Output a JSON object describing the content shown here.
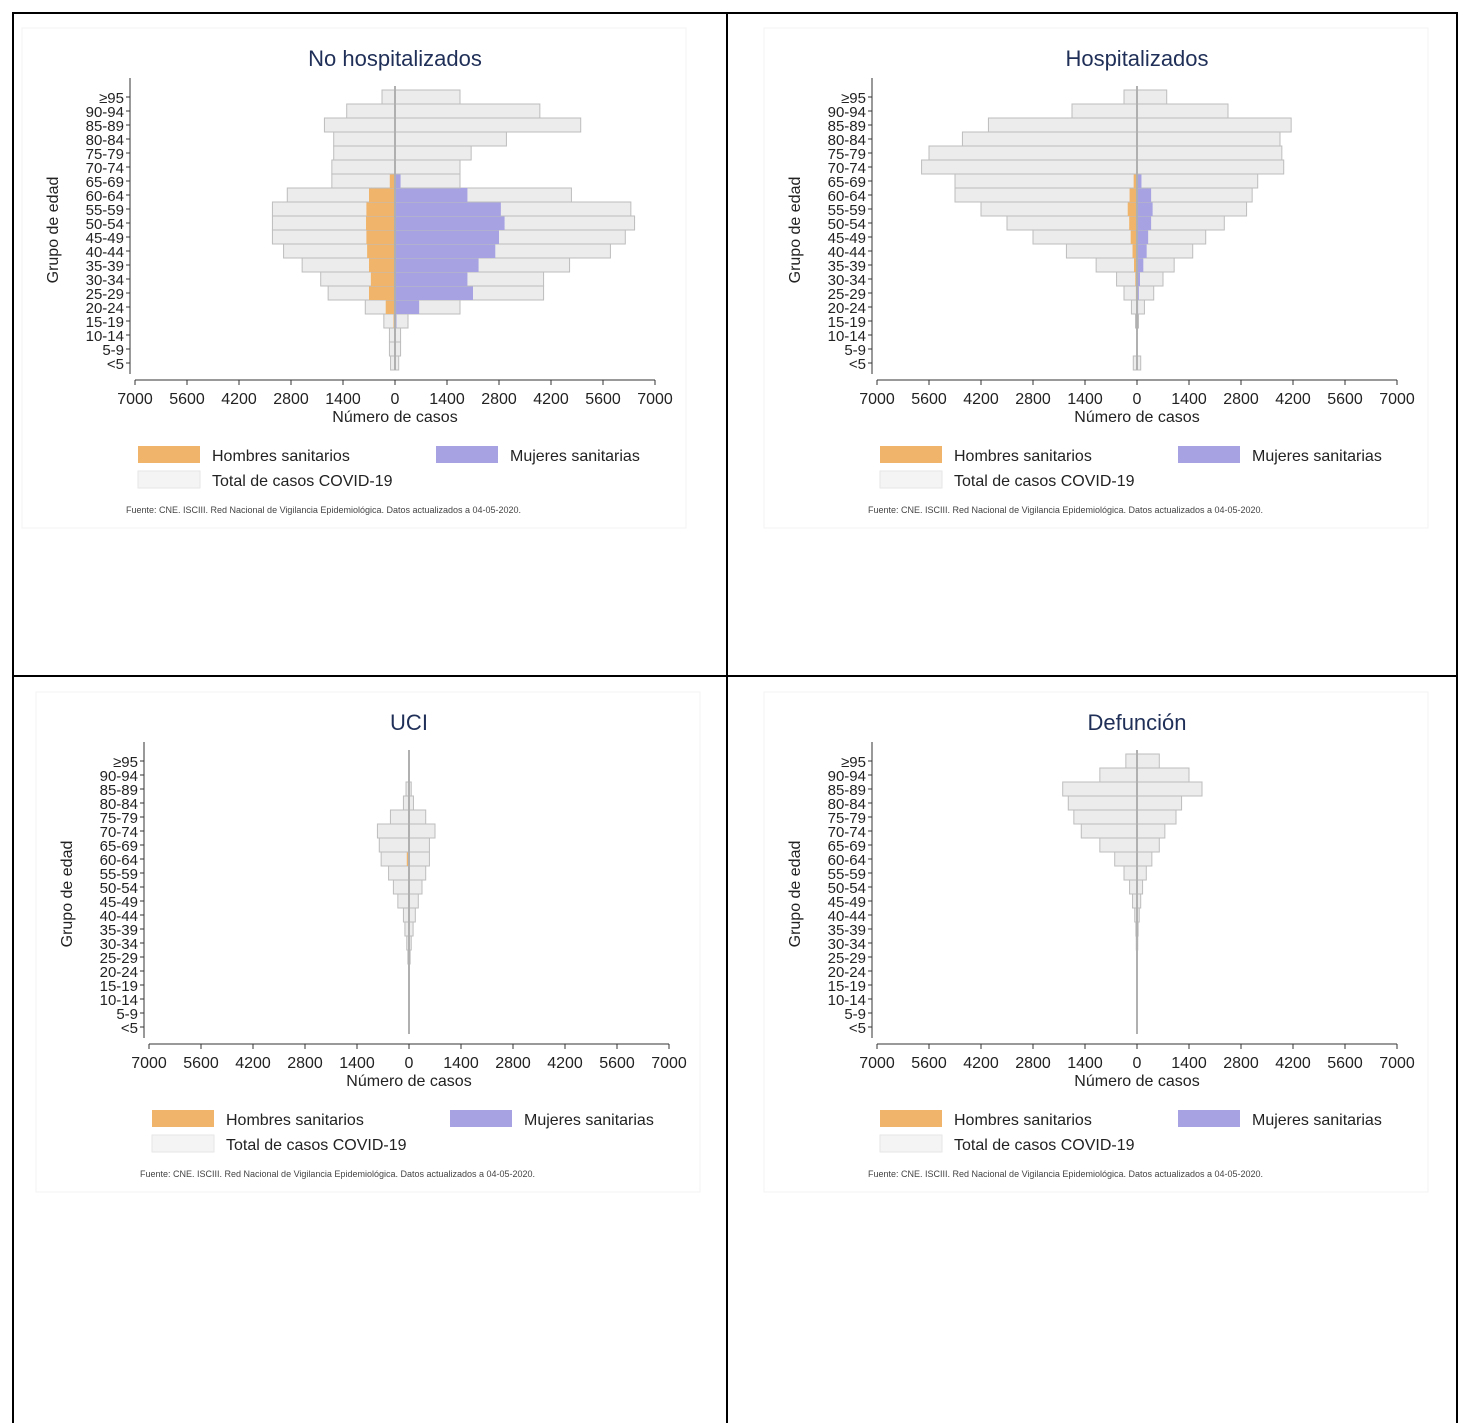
{
  "age_groups": [
    "<5",
    "5-9",
    "10-14",
    "15-19",
    "20-24",
    "25-29",
    "30-34",
    "35-39",
    "40-44",
    "45-49",
    "50-54",
    "55-59",
    "60-64",
    "65-69",
    "70-74",
    "75-79",
    "80-84",
    "85-89",
    "90-94",
    "≥95"
  ],
  "x_ticks": [
    "7000",
    "5600",
    "4200",
    "2800",
    "1400",
    "0",
    "1400",
    "2800",
    "4200",
    "5600",
    "7000"
  ],
  "xlabel": "Número de casos",
  "ylabel": "Grupo de edad",
  "legend": {
    "men": "Hombres sanitarios",
    "women": "Mujeres sanitarias",
    "total": "Total de casos COVID-19"
  },
  "source": "Fuente: CNE. ISCIII. Red Nacional de Vigilancia Epidemiológica. Datos actualizados a 04-05-2020.",
  "colors": {
    "men": "#f0b46a",
    "women": "#a7a2e2",
    "total": "#ececec",
    "total_stroke": "#bdbdbd",
    "title": "#1f2f57"
  },
  "chart_data": [
    {
      "type": "bar",
      "title": "No hospitalizados",
      "xlim": [
        -7000,
        7000
      ],
      "total_left": [
        120,
        150,
        150,
        300,
        800,
        1800,
        2000,
        2500,
        3000,
        3300,
        3300,
        3300,
        2900,
        1700,
        1700,
        1650,
        1650,
        1900,
        1300,
        350
      ],
      "total_right": [
        100,
        150,
        150,
        350,
        1750,
        4000,
        4000,
        4700,
        5800,
        6200,
        6450,
        6350,
        4750,
        1750,
        1750,
        2050,
        3000,
        5000,
        3900,
        1750
      ],
      "men": [
        0,
        0,
        0,
        40,
        250,
        700,
        650,
        700,
        750,
        770,
        780,
        770,
        700,
        140,
        0,
        0,
        0,
        0,
        0,
        0
      ],
      "women": [
        0,
        0,
        0,
        40,
        650,
        2100,
        1950,
        2250,
        2700,
        2800,
        2950,
        2850,
        1950,
        150,
        0,
        0,
        0,
        0,
        0,
        0
      ]
    },
    {
      "type": "bar",
      "title": "Hospitalizados",
      "xlim": [
        -7000,
        7000
      ],
      "total_left": [
        100,
        0,
        0,
        40,
        150,
        350,
        550,
        1100,
        1900,
        2800,
        3500,
        4200,
        4900,
        4900,
        5800,
        5600,
        4700,
        4000,
        1750,
        350
      ],
      "total_right": [
        100,
        0,
        0,
        40,
        200,
        450,
        700,
        1000,
        1500,
        1850,
        2350,
        2950,
        3100,
        3250,
        3950,
        3900,
        3850,
        4150,
        2450,
        800
      ],
      "men": [
        0,
        0,
        0,
        0,
        15,
        30,
        45,
        80,
        120,
        170,
        210,
        250,
        200,
        90,
        0,
        0,
        0,
        0,
        0,
        0
      ],
      "women": [
        0,
        0,
        0,
        0,
        30,
        50,
        80,
        170,
        260,
        300,
        380,
        420,
        380,
        120,
        0,
        0,
        0,
        0,
        0,
        0
      ]
    },
    {
      "type": "bar",
      "title": "UCI",
      "xlim": [
        -7000,
        7000
      ],
      "total_left": [
        0,
        0,
        0,
        0,
        0,
        30,
        60,
        110,
        150,
        300,
        420,
        550,
        750,
        800,
        850,
        500,
        150,
        80,
        0,
        0
      ],
      "total_right": [
        0,
        0,
        0,
        0,
        0,
        30,
        60,
        110,
        170,
        250,
        350,
        450,
        550,
        550,
        700,
        450,
        120,
        60,
        0,
        0
      ],
      "men": [
        0,
        0,
        0,
        0,
        0,
        0,
        0,
        0,
        0,
        0,
        0,
        0,
        60,
        0,
        0,
        0,
        0,
        0,
        0,
        0
      ],
      "women": [
        0,
        0,
        0,
        0,
        0,
        0,
        0,
        0,
        0,
        0,
        0,
        0,
        0,
        0,
        0,
        0,
        0,
        0,
        0,
        0
      ]
    },
    {
      "type": "bar",
      "title": "Defunción",
      "xlim": [
        -7000,
        7000
      ],
      "total_left": [
        0,
        0,
        0,
        0,
        0,
        10,
        20,
        30,
        60,
        120,
        200,
        350,
        600,
        1000,
        1500,
        1700,
        1850,
        2000,
        1000,
        300
      ],
      "total_right": [
        0,
        0,
        0,
        0,
        0,
        10,
        20,
        30,
        60,
        100,
        150,
        250,
        400,
        600,
        750,
        1050,
        1200,
        1750,
        1400,
        600
      ],
      "men": [
        0,
        0,
        0,
        0,
        0,
        0,
        0,
        0,
        0,
        0,
        0,
        0,
        0,
        0,
        0,
        0,
        0,
        0,
        0,
        0
      ],
      "women": [
        0,
        0,
        0,
        0,
        0,
        0,
        0,
        0,
        0,
        0,
        0,
        0,
        0,
        0,
        0,
        0,
        0,
        0,
        0,
        0
      ]
    }
  ]
}
